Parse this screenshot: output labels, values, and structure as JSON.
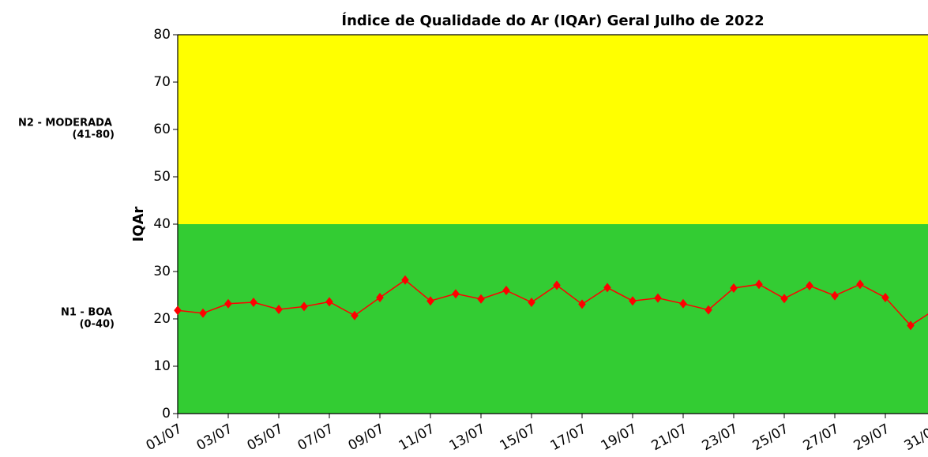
{
  "chart_data": {
    "type": "line",
    "title": "Índice de Qualidade do Ar (IQAr) Geral Julho de  2022",
    "ylabel": "IQAr",
    "categories": [
      "01/07",
      null,
      "03/07",
      null,
      "05/07",
      null,
      "07/07",
      null,
      "09/07",
      null,
      "11/07",
      null,
      "13/07",
      null,
      "15/07",
      null,
      "17/07",
      null,
      "19/07",
      null,
      "21/07",
      null,
      "23/07",
      null,
      "25/07",
      null,
      "27/07",
      null,
      "29/07",
      null,
      "31/07"
    ],
    "series": [
      {
        "color": "#ff0000",
        "values": [
          21.8,
          21.2,
          23.2,
          23.5,
          22.0,
          22.6,
          23.6,
          20.7,
          24.5,
          28.2,
          23.8,
          25.3,
          24.2,
          26.0,
          23.5,
          27.1,
          23.1,
          26.6,
          23.8,
          24.4,
          23.2,
          21.9,
          26.5,
          27.3,
          24.3,
          27.0,
          24.9,
          27.3,
          24.5,
          18.6,
          22.1
        ]
      }
    ],
    "ylim": [
      0,
      80
    ],
    "yticks": [
      0,
      10,
      20,
      30,
      40,
      50,
      60,
      70,
      80
    ],
    "bands": [
      {
        "label": "N1 - BOA",
        "range": "(0-40)",
        "from": 0,
        "to": 40,
        "color": "#33cc33"
      },
      {
        "label": "N2 - MODERADA",
        "range": "(41-80)",
        "from": 40,
        "to": 80,
        "color": "#ffff00"
      }
    ]
  }
}
